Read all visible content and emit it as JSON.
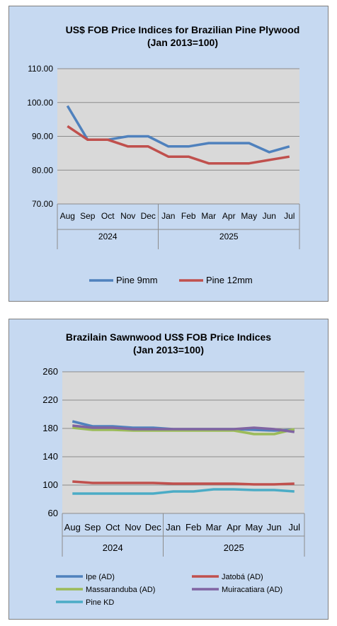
{
  "chart_data": [
    {
      "type": "line",
      "title": "US$ FOB Price Indices for Brazilian  Pine Plywood",
      "subtitle": "(Jan 2013=100)",
      "categories": [
        "Aug",
        "Sep",
        "Oct",
        "Nov",
        "Dec",
        "Jan",
        "Feb",
        "Mar",
        "Apr",
        "May",
        "Jun",
        "Jul"
      ],
      "year_groups": [
        {
          "label": "2024",
          "count": 5
        },
        {
          "label": "2025",
          "count": 7
        }
      ],
      "ylim": [
        70,
        110
      ],
      "yticks": [
        "70.00",
        "80.00",
        "90.00",
        "100.00",
        "110.00"
      ],
      "grid": true,
      "legend_position": "bottom",
      "series": [
        {
          "name": "Pine 9mm",
          "color": "#4f81bd",
          "values": [
            99,
            89,
            89,
            90,
            90,
            87,
            87,
            88,
            88,
            88,
            85.3,
            87
          ]
        },
        {
          "name": "Pine 12mm",
          "color": "#c0504d",
          "values": [
            93,
            89,
            89,
            87,
            87,
            84,
            84,
            82,
            82,
            82,
            83,
            84
          ]
        }
      ]
    },
    {
      "type": "line",
      "title": "Brazilain Sawnwood US$ FOB Price Indices",
      "subtitle": "(Jan 2013=100)",
      "categories": [
        "Aug",
        "Sep",
        "Oct",
        "Nov",
        "Dec",
        "Jan",
        "Feb",
        "Mar",
        "Apr",
        "May",
        "Jun",
        "Jul"
      ],
      "year_groups": [
        {
          "label": "2024",
          "count": 5
        },
        {
          "label": "2025",
          "count": 7
        }
      ],
      "ylim": [
        60,
        260
      ],
      "yticks": [
        "60",
        "100",
        "140",
        "180",
        "220",
        "260"
      ],
      "grid": true,
      "legend_position": "bottom",
      "series": [
        {
          "name": "Ipe (AD)",
          "color": "#4f81bd",
          "values": [
            190,
            183,
            183,
            181,
            181,
            179,
            179,
            179,
            179,
            178,
            177,
            178
          ]
        },
        {
          "name": "Jatobá (AD)",
          "color": "#c0504d",
          "values": [
            105,
            103,
            103,
            103,
            103,
            102,
            102,
            102,
            102,
            101,
            101,
            102
          ]
        },
        {
          "name": "Massaranduba (AD)",
          "color": "#9bbb59",
          "values": [
            181,
            178,
            178,
            177,
            177,
            177,
            177,
            177,
            177,
            172,
            172,
            179
          ]
        },
        {
          "name": "Muiracatiara (AD)",
          "color": "#8064a2",
          "values": [
            184,
            181,
            181,
            179,
            179,
            179,
            179,
            179,
            179,
            181,
            179,
            175
          ]
        },
        {
          "name": "Pine KD",
          "color": "#4bacc6",
          "values": [
            88,
            88,
            88,
            88,
            88,
            91,
            91,
            94,
            94,
            93,
            93,
            91
          ]
        }
      ]
    }
  ]
}
